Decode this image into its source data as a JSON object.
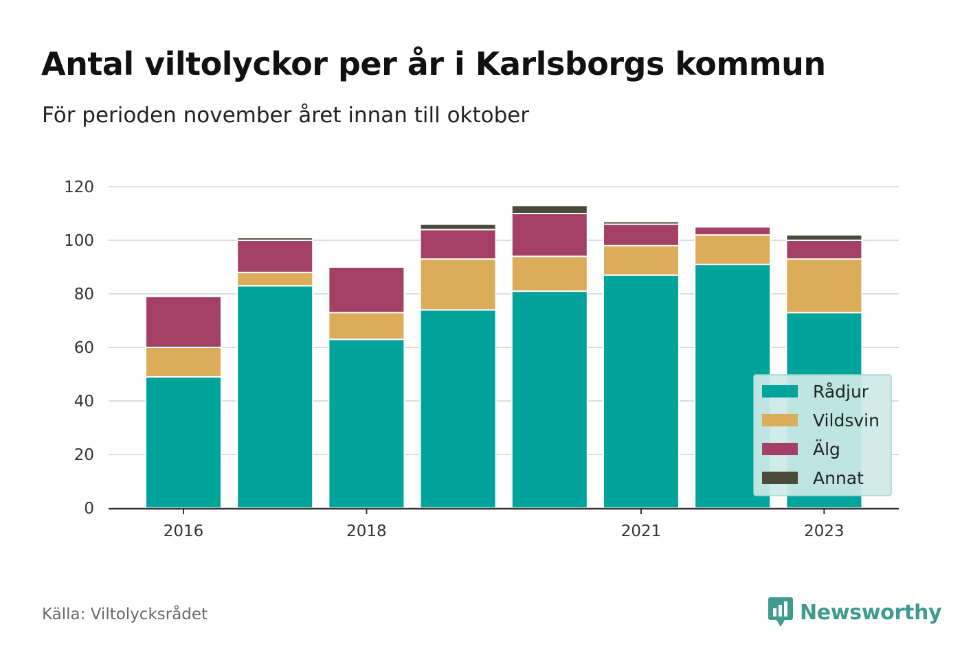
{
  "header": {
    "title": "Antal viltolyckor per år i Karlsborgs kommun",
    "subtitle": "För perioden november året innan till oktober"
  },
  "footer": {
    "source": "Källa: Viltolycksrådet",
    "brand": "Newsworthy"
  },
  "colors": {
    "Rådjur": "#00a49a",
    "Vildsvin": "#dbac5a",
    "Älg": "#a44065",
    "Annat": "#4a4b3b",
    "grid": "#dddddd",
    "axis": "#333333",
    "legend_bg": "#cce9e6",
    "legend_border": "#9dd6d0",
    "brand": "#3f9a8f"
  },
  "chart_data": {
    "type": "bar",
    "stacked": true,
    "x": [
      2016,
      2017,
      2018,
      2019,
      2020,
      2021,
      2022,
      2023
    ],
    "x_tick_labels": [
      "2016",
      "2018",
      "2021",
      "2023"
    ],
    "x_tick_values": [
      2016,
      2018,
      2021,
      2023
    ],
    "y_ticks": [
      0,
      20,
      40,
      60,
      80,
      100,
      120
    ],
    "ylim": [
      0,
      120
    ],
    "grid": true,
    "legend_position": "bottom-right",
    "series": [
      {
        "name": "Rådjur",
        "values": [
          49,
          83,
          63,
          74,
          81,
          87,
          91,
          73
        ]
      },
      {
        "name": "Vildsvin",
        "values": [
          11,
          5,
          10,
          19,
          13,
          11,
          11,
          20
        ]
      },
      {
        "name": "Älg",
        "values": [
          19,
          12,
          17,
          11,
          16,
          8,
          3,
          7
        ]
      },
      {
        "name": "Annat",
        "values": [
          0,
          1,
          0,
          2,
          3,
          1,
          0,
          2
        ]
      }
    ]
  }
}
